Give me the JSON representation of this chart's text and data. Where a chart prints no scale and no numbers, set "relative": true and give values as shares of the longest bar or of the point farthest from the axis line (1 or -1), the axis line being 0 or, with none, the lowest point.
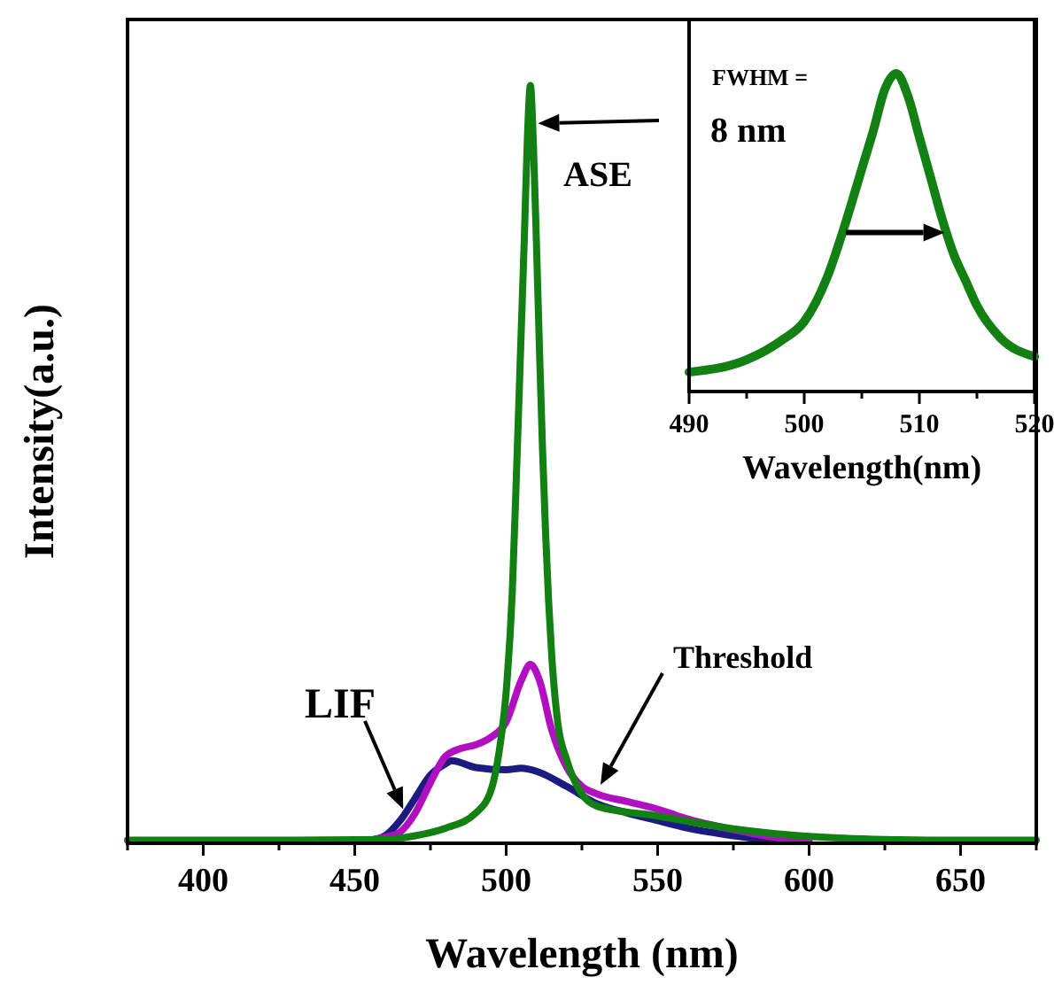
{
  "chart_data": [
    {
      "type": "line",
      "relative": true,
      "xlabel": "Wavelength (nm)",
      "ylabel": "Intensity(a.u.)",
      "xlim": [
        375,
        675
      ],
      "xticks": [
        {
          "value": 375,
          "label": null
        },
        400,
        {
          "value": 425,
          "label": null
        },
        450,
        {
          "value": 475,
          "label": null
        },
        500,
        {
          "value": 525,
          "label": null
        },
        550,
        {
          "value": 575,
          "label": null
        },
        600,
        {
          "value": 625,
          "label": null
        },
        650,
        {
          "value": 675,
          "label": null
        }
      ],
      "tick_labels": "x",
      "grid": false,
      "annotations": [
        {
          "text": "LIF",
          "x": 466,
          "y": 0.045
        },
        "Threshold",
        {
          "text": "ASE",
          "x": 510.5,
          "y": 0.95
        }
      ],
      "series": [
        {
          "color": "#1c1c80",
          "x": [
            455,
            460,
            465,
            470,
            475,
            480,
            482,
            490,
            500,
            505,
            510,
            520,
            530,
            540,
            550,
            560,
            575,
            590
          ],
          "values": [
            0.004,
            0.01,
            0.03,
            0.06,
            0.09,
            0.105,
            0.109,
            0.1,
            0.097,
            0.099,
            0.095,
            0.075,
            0.052,
            0.04,
            0.03,
            0.02,
            0.01,
            0.003
          ]
        },
        {
          "color": "#b010c0",
          "x": [
            455,
            460,
            465,
            470,
            475,
            480,
            485,
            490,
            495,
            500,
            505,
            508,
            511,
            515,
            520,
            525,
            530,
            540,
            550,
            560,
            575,
            590,
            600
          ],
          "values": [
            0.004,
            0.008,
            0.015,
            0.04,
            0.08,
            0.115,
            0.125,
            0.13,
            0.14,
            0.16,
            0.215,
            0.236,
            0.215,
            0.15,
            0.1,
            0.075,
            0.065,
            0.055,
            0.045,
            0.032,
            0.018,
            0.007,
            0.004
          ]
        },
        {
          "color": "#138013",
          "x": [
            375,
            400,
            430,
            460,
            470,
            480,
            490,
            495,
            498,
            500,
            502,
            503.5,
            505,
            506,
            507,
            508,
            509,
            510,
            511,
            512,
            513,
            514,
            515,
            517,
            520,
            525,
            530,
            550,
            575,
            600,
            625,
            650,
            675
          ],
          "values": [
            0.004,
            0.004,
            0.004,
            0.005,
            0.01,
            0.02,
            0.04,
            0.07,
            0.13,
            0.2,
            0.33,
            0.5,
            0.68,
            0.8,
            0.93,
            1,
            0.92,
            0.79,
            0.65,
            0.52,
            0.41,
            0.32,
            0.25,
            0.16,
            0.11,
            0.065,
            0.049,
            0.036,
            0.019,
            0.009,
            0.005,
            0.004,
            0.004
          ]
        }
      ]
    },
    {
      "type": "line",
      "relative": true,
      "xlabel": "Wavelength(nm)",
      "xlim": [
        490,
        520
      ],
      "xticks": [
        490,
        {
          "value": 495,
          "label": null
        },
        500,
        {
          "value": 505,
          "label": null
        },
        510,
        {
          "value": 515,
          "label": null
        },
        520
      ],
      "tick_labels": "x",
      "grid": false,
      "annotations": [
        "FWHM =",
        "8 nm"
      ],
      "series": [
        {
          "color": "#138013",
          "x": [
            490,
            495,
            498,
            500,
            502,
            503.5,
            505,
            506,
            507,
            508,
            509,
            510,
            511,
            512,
            513,
            514,
            515,
            517,
            520
          ],
          "values": [
            0.061,
            0.1,
            0.16,
            0.22,
            0.36,
            0.52,
            0.7,
            0.82,
            0.95,
            1,
            0.93,
            0.8,
            0.67,
            0.54,
            0.43,
            0.35,
            0.27,
            0.17,
            0.11
          ]
        }
      ]
    }
  ]
}
